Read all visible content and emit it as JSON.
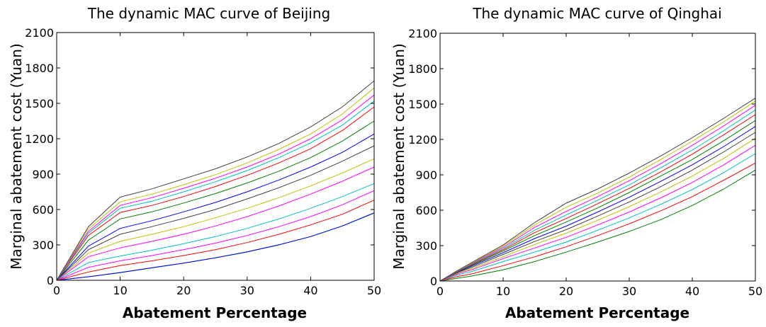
{
  "chart_data": [
    {
      "type": "line",
      "title": "The dynamic MAC curve of Beijing",
      "xlabel": "Abatement Percentage",
      "ylabel": "Marginal abatement cost (Yuan)",
      "xlim": [
        0,
        50
      ],
      "ylim": [
        0,
        2100
      ],
      "xticks": [
        "0",
        "10",
        "20",
        "30",
        "40",
        "50"
      ],
      "yticks": [
        "0",
        "300",
        "600",
        "900",
        "1200",
        "1500",
        "1800",
        "2100"
      ],
      "x": [
        0,
        5,
        10,
        15,
        20,
        25,
        30,
        35,
        40,
        45,
        50
      ],
      "grid": false,
      "legend": "none",
      "series": [
        {
          "color": "#008000",
          "values": [
            0,
            30,
            65,
            105,
            145,
            190,
            240,
            300,
            370,
            460,
            570
          ]
        },
        {
          "color": "#0000ff",
          "values": [
            0,
            30,
            66,
            106,
            146,
            191,
            241,
            301,
            371,
            461,
            572
          ]
        },
        {
          "color": "#ff0000",
          "values": [
            0,
            70,
            125,
            165,
            210,
            260,
            320,
            390,
            470,
            560,
            680
          ]
        },
        {
          "color": "#ff00ff",
          "values": [
            0,
            110,
            165,
            210,
            260,
            315,
            380,
            455,
            540,
            640,
            760
          ]
        },
        {
          "color": "#00bfbf",
          "values": [
            0,
            150,
            205,
            255,
            310,
            370,
            440,
            520,
            610,
            710,
            820
          ]
        },
        {
          "color": "#ff00ff",
          "values": [
            0,
            200,
            275,
            330,
            390,
            460,
            540,
            630,
            730,
            840,
            960
          ]
        },
        {
          "color": "#bfbf00",
          "values": [
            0,
            230,
            330,
            390,
            455,
            530,
            610,
            700,
            800,
            910,
            1030
          ]
        },
        {
          "color": "#404040",
          "values": [
            0,
            260,
            390,
            455,
            525,
            600,
            690,
            785,
            890,
            1010,
            1140
          ]
        },
        {
          "color": "#0000ff",
          "values": [
            0,
            290,
            440,
            505,
            580,
            660,
            750,
            850,
            960,
            1085,
            1240
          ]
        },
        {
          "color": "#008000",
          "values": [
            0,
            340,
            520,
            580,
            655,
            735,
            825,
            925,
            1040,
            1180,
            1350
          ]
        },
        {
          "color": "#ff0000",
          "values": [
            0,
            380,
            575,
            635,
            710,
            795,
            890,
            995,
            1115,
            1270,
            1470
          ]
        },
        {
          "color": "#00bfbf",
          "values": [
            0,
            400,
            610,
            670,
            750,
            835,
            930,
            1040,
            1165,
            1315,
            1520
          ]
        },
        {
          "color": "#ff00ff",
          "values": [
            0,
            415,
            635,
            700,
            780,
            865,
            960,
            1070,
            1200,
            1360,
            1570
          ]
        },
        {
          "color": "#bfbf00",
          "values": [
            0,
            435,
            665,
            730,
            810,
            895,
            995,
            1110,
            1240,
            1410,
            1630
          ]
        },
        {
          "color": "#404040",
          "values": [
            0,
            455,
            705,
            775,
            860,
            945,
            1045,
            1160,
            1300,
            1470,
            1690
          ]
        }
      ]
    },
    {
      "type": "line",
      "title": "The dynamic MAC curve of Qinghai",
      "xlabel": "Abatement Percentage",
      "ylabel": "Marginal abatement cost (Yuan)",
      "xlim": [
        0,
        50
      ],
      "ylim": [
        0,
        2100
      ],
      "xticks": [
        "0",
        "10",
        "20",
        "30",
        "40",
        "50"
      ],
      "yticks": [
        "0",
        "300",
        "600",
        "900",
        "1200",
        "1500",
        "1800",
        "2100"
      ],
      "x": [
        0,
        3,
        5,
        10,
        15,
        20,
        25,
        30,
        35,
        40,
        45,
        50
      ],
      "grid": false,
      "legend": "none",
      "series": [
        {
          "color": "#008000",
          "values": [
            0,
            25,
            42,
            95,
            165,
            245,
            330,
            420,
            520,
            640,
            780,
            940
          ]
        },
        {
          "color": "#ff0000",
          "values": [
            0,
            40,
            60,
            130,
            205,
            290,
            385,
            485,
            595,
            715,
            855,
            1000
          ]
        },
        {
          "color": "#00bfbf",
          "values": [
            0,
            55,
            80,
            165,
            245,
            330,
            430,
            535,
            650,
            775,
            920,
            1080
          ]
        },
        {
          "color": "#ff00ff",
          "values": [
            0,
            65,
            95,
            190,
            280,
            370,
            475,
            585,
            705,
            835,
            985,
            1150
          ]
        },
        {
          "color": "#bfbf00",
          "values": [
            0,
            72,
            105,
            205,
            310,
            405,
            515,
            630,
            755,
            890,
            1040,
            1210
          ]
        },
        {
          "color": "#404040",
          "values": [
            0,
            78,
            115,
            225,
            335,
            435,
            550,
            670,
            800,
            940,
            1095,
            1260
          ]
        },
        {
          "color": "#0000ff",
          "values": [
            0,
            82,
            125,
            240,
            360,
            465,
            585,
            710,
            845,
            985,
            1140,
            1310
          ]
        },
        {
          "color": "#008000",
          "values": [
            0,
            85,
            132,
            255,
            385,
            500,
            620,
            750,
            890,
            1030,
            1190,
            1360
          ]
        },
        {
          "color": "#ff0000",
          "values": [
            0,
            88,
            138,
            265,
            410,
            530,
            655,
            785,
            925,
            1075,
            1240,
            1410
          ]
        },
        {
          "color": "#00bfbf",
          "values": [
            0,
            90,
            143,
            275,
            430,
            560,
            685,
            815,
            960,
            1110,
            1275,
            1450
          ]
        },
        {
          "color": "#ff00ff",
          "values": [
            0,
            92,
            148,
            285,
            455,
            590,
            715,
            850,
            995,
            1150,
            1315,
            1490
          ]
        },
        {
          "color": "#bfbf00",
          "values": [
            0,
            94,
            152,
            295,
            475,
            625,
            745,
            880,
            1030,
            1185,
            1350,
            1525
          ]
        },
        {
          "color": "#404040",
          "values": [
            0,
            96,
            156,
            305,
            495,
            660,
            780,
            915,
            1060,
            1215,
            1380,
            1550
          ]
        }
      ]
    }
  ]
}
